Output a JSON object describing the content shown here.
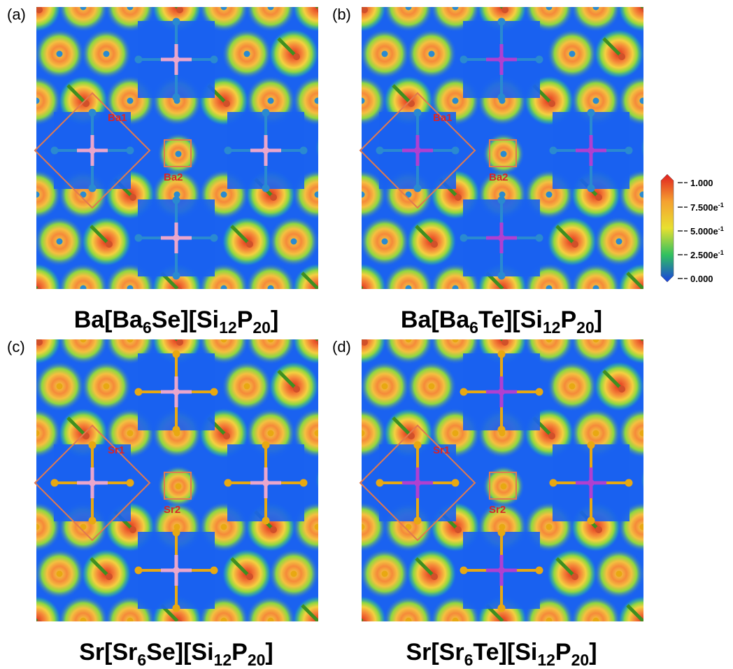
{
  "panels": [
    {
      "label": "(a)",
      "site_labels": [
        "Ba1",
        "Ba2"
      ],
      "formula": [
        "Ba[Ba",
        "6",
        "Se][Si",
        "12",
        "P",
        "20",
        "]"
      ]
    },
    {
      "label": "(b)",
      "site_labels": [
        "Ba1",
        "Ba2"
      ],
      "formula": [
        "Ba[Ba",
        "6",
        "Te][Si",
        "12",
        "P",
        "20",
        "]"
      ]
    },
    {
      "label": "(c)",
      "site_labels": [
        "Sr1",
        "Sr2"
      ],
      "formula": [
        "Sr[Sr",
        "6",
        "Se][Si",
        "12",
        "P",
        "20",
        "]"
      ]
    },
    {
      "label": "(d)",
      "site_labels": [
        "Sr1",
        "Sr2"
      ],
      "formula": [
        "Sr[Sr",
        "6",
        "Te][Si",
        "12",
        "P",
        "20",
        "]"
      ]
    }
  ],
  "colorbar": {
    "ticks": [
      {
        "text": "1.000"
      },
      {
        "text": "7.500e",
        "sup": "-1"
      },
      {
        "text": "5.000e",
        "sup": "-1"
      },
      {
        "text": "2.500e",
        "sup": "-1"
      },
      {
        "text": "0.000"
      }
    ]
  }
}
